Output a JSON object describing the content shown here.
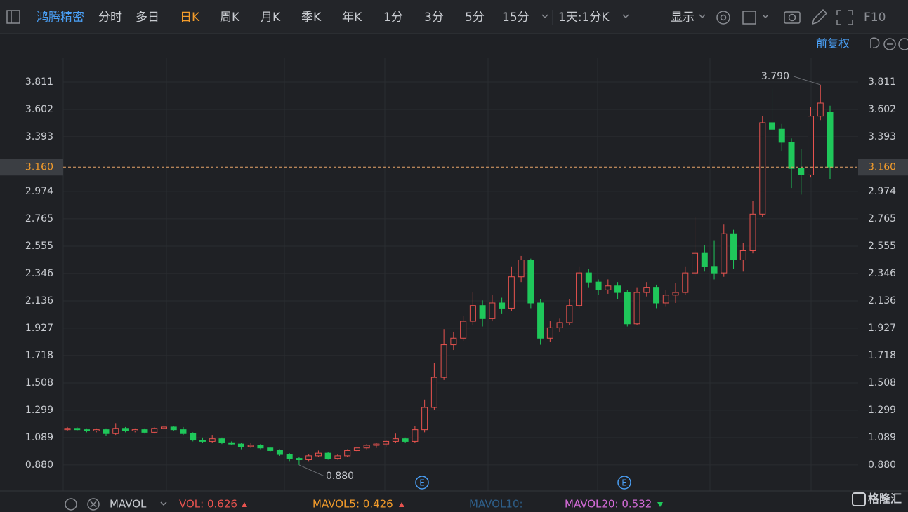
{
  "toolbar": {
    "stock": "鸿腾精密",
    "periods": [
      "分时",
      "多日",
      "日K",
      "周K",
      "月K",
      "季K",
      "年K",
      "1分",
      "3分",
      "5分",
      "15分"
    ],
    "active_period": 2,
    "interval": "1天:1分K",
    "display": "显示",
    "f10": "F10"
  },
  "adjust": "前复权",
  "chart_data": {
    "type": "candlestick",
    "open": [
      1.15,
      1.16,
      1.15,
      1.14,
      1.15,
      1.12,
      1.16,
      1.14,
      1.15,
      1.13,
      1.16,
      1.17,
      1.15,
      1.12,
      1.07,
      1.06,
      1.08,
      1.05,
      1.04,
      1.02,
      1.03,
      1.01,
      0.99,
      0.96,
      0.93,
      0.92,
      0.95,
      0.97,
      0.93,
      0.95,
      0.99,
      1.01,
      1.03,
      1.04,
      1.06,
      1.08,
      1.06,
      1.15,
      1.32,
      1.55,
      1.8,
      1.85,
      1.98,
      2.1,
      2.0,
      2.12,
      2.08,
      2.32,
      2.45,
      2.12,
      1.85,
      1.93,
      1.97,
      2.1,
      2.35,
      2.28,
      2.22,
      2.25,
      2.2,
      1.96,
      2.2,
      2.24,
      2.12,
      2.18,
      2.2,
      2.35,
      2.5,
      2.4,
      2.35,
      2.65,
      2.45,
      2.52,
      2.8,
      3.5,
      3.45,
      3.35,
      3.15,
      3.1,
      3.55,
      3.58
    ],
    "high": [
      1.17,
      1.17,
      1.16,
      1.16,
      1.16,
      1.2,
      1.17,
      1.16,
      1.16,
      1.17,
      1.19,
      1.18,
      1.17,
      1.13,
      1.09,
      1.11,
      1.09,
      1.06,
      1.05,
      1.05,
      1.04,
      1.02,
      1.0,
      0.97,
      0.94,
      0.96,
      0.99,
      0.98,
      0.96,
      1.0,
      1.02,
      1.04,
      1.05,
      1.07,
      1.12,
      1.09,
      1.18,
      1.38,
      1.66,
      1.92,
      1.9,
      2.02,
      2.2,
      2.14,
      2.18,
      2.16,
      2.4,
      2.48,
      2.46,
      2.15,
      1.98,
      2.0,
      2.15,
      2.4,
      2.38,
      2.3,
      2.3,
      2.28,
      2.22,
      2.24,
      2.28,
      2.26,
      2.22,
      2.27,
      2.4,
      2.78,
      2.56,
      2.6,
      2.72,
      2.68,
      2.58,
      2.9,
      3.55,
      3.76,
      3.49,
      3.38,
      3.3,
      3.62,
      3.79,
      3.63
    ],
    "low": [
      1.14,
      1.14,
      1.13,
      1.13,
      1.1,
      1.11,
      1.13,
      1.13,
      1.12,
      1.12,
      1.15,
      1.14,
      1.11,
      1.06,
      1.05,
      1.05,
      1.04,
      1.03,
      1.0,
      1.01,
      1.0,
      0.98,
      0.95,
      0.91,
      0.88,
      0.91,
      0.94,
      0.92,
      0.92,
      0.94,
      0.98,
      1.0,
      1.01,
      1.02,
      1.05,
      1.05,
      1.05,
      1.13,
      1.3,
      1.53,
      1.76,
      1.83,
      1.95,
      1.94,
      1.98,
      2.04,
      2.06,
      2.28,
      2.08,
      1.8,
      1.82,
      1.9,
      1.95,
      2.08,
      2.24,
      2.18,
      2.19,
      2.15,
      1.94,
      1.95,
      2.17,
      2.08,
      2.09,
      2.12,
      2.18,
      2.32,
      2.36,
      2.3,
      2.32,
      2.38,
      2.36,
      2.5,
      2.78,
      3.38,
      3.28,
      3.0,
      2.95,
      3.08,
      3.52,
      3.07
    ],
    "close": [
      1.16,
      1.15,
      1.14,
      1.15,
      1.12,
      1.16,
      1.14,
      1.15,
      1.13,
      1.16,
      1.17,
      1.15,
      1.12,
      1.07,
      1.06,
      1.08,
      1.05,
      1.04,
      1.02,
      1.03,
      1.01,
      0.99,
      0.96,
      0.93,
      0.92,
      0.95,
      0.97,
      0.93,
      0.95,
      0.99,
      1.01,
      1.03,
      1.04,
      1.06,
      1.08,
      1.06,
      1.15,
      1.32,
      1.55,
      1.8,
      1.85,
      1.98,
      2.1,
      2.0,
      2.12,
      2.08,
      2.32,
      2.45,
      2.12,
      1.85,
      1.93,
      1.97,
      2.1,
      2.35,
      2.28,
      2.22,
      2.25,
      2.2,
      1.96,
      2.2,
      2.24,
      2.12,
      2.18,
      2.2,
      2.35,
      2.5,
      2.4,
      2.35,
      2.65,
      2.45,
      2.52,
      2.8,
      3.5,
      3.45,
      3.35,
      3.15,
      3.1,
      3.55,
      3.65,
      3.16
    ],
    "ylim": [
      0.681,
      3.999
    ],
    "yticks": [
      3.811,
      3.602,
      3.393,
      2.974,
      2.765,
      2.555,
      2.346,
      2.136,
      1.927,
      1.718,
      1.508,
      1.299,
      1.089,
      {
        "value": 0.88,
        "label": "0.880"
      }
    ],
    "current_price": {
      "value": 3.16,
      "label": "3.160"
    },
    "annotations": [
      {
        "value": 3.79,
        "label": "3.790"
      },
      {
        "value": 0.88,
        "label": "0.880"
      }
    ],
    "up_color": "#e8534f",
    "down_color": "#1fc75a",
    "grid": true
  },
  "event_markers": [
    "E",
    "E"
  ],
  "indicator_bar": {
    "name": "MAVOL",
    "vol": "VOL: 0.626",
    "mavol5": "MAVOL5: 0.426",
    "mavol10": "MAVOL10:",
    "mavol20": "MAVOL20: 0.532"
  },
  "watermark": "格隆汇"
}
